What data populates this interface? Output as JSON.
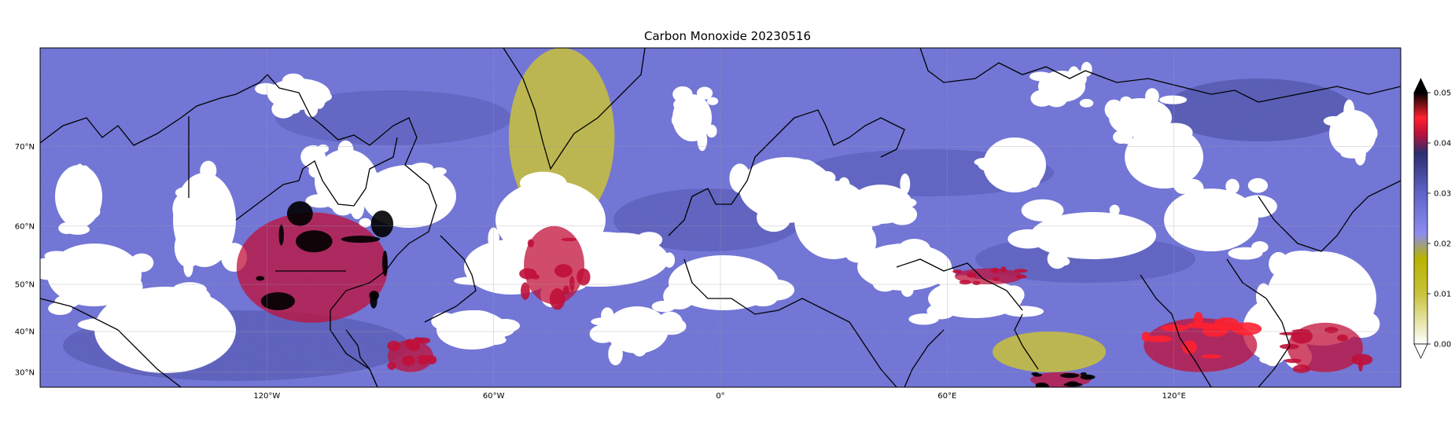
{
  "title": "Carbon Monoxide 20230516",
  "map": {
    "projection": "Mercator",
    "lon_range": [
      -180,
      180
    ],
    "lat_range": [
      26,
      78
    ],
    "background_color": "#7478dc",
    "cloud_mask_color": "#ffffff",
    "coastline_color": "#000000",
    "gridlines": true,
    "lat_ticks": [
      {
        "value": 70,
        "label": "70°N"
      },
      {
        "value": 60,
        "label": "60°N"
      },
      {
        "value": 50,
        "label": "50°N"
      },
      {
        "value": 40,
        "label": "40°N"
      },
      {
        "value": 30,
        "label": "30°N"
      }
    ],
    "lon_ticks": [
      {
        "value": -120,
        "label": "120°W"
      },
      {
        "value": -60,
        "label": "60°W"
      },
      {
        "value": 0,
        "label": "0°"
      },
      {
        "value": 60,
        "label": "60°E"
      },
      {
        "value": 120,
        "label": "120°E"
      }
    ]
  },
  "colorbar": {
    "min": 0,
    "max": 0.05,
    "extend": "both",
    "stops": [
      {
        "value": 0.0,
        "color": "#ffffff"
      },
      {
        "value": 0.01,
        "color": "#c8c23a"
      },
      {
        "value": 0.017,
        "color": "#b8b400"
      },
      {
        "value": 0.022,
        "color": "#8c8cf0"
      },
      {
        "value": 0.03,
        "color": "#6064c8"
      },
      {
        "value": 0.038,
        "color": "#2a2e6e"
      },
      {
        "value": 0.042,
        "color": "#c01038"
      },
      {
        "value": 0.045,
        "color": "#ff2030"
      },
      {
        "value": 0.05,
        "color": "#000000"
      }
    ],
    "ticks": [
      {
        "value": 0.05,
        "label": "0.05"
      },
      {
        "value": 0.04,
        "label": "0.04"
      },
      {
        "value": 0.03,
        "label": "0.03"
      },
      {
        "value": 0.02,
        "label": "0.02"
      },
      {
        "value": 0.01,
        "label": "0.01"
      },
      {
        "value": 0.0,
        "label": "0.00"
      }
    ]
  },
  "features": {
    "high_co_plumes": [
      {
        "name": "Western Canada wildfire plume",
        "lon": [
          -128,
          -88
        ],
        "lat": [
          42,
          62
        ],
        "value": 0.05
      },
      {
        "name": "Eastern China / Korea / Japan",
        "lon": [
          112,
          142
        ],
        "lat": [
          30,
          43
        ],
        "value": 0.045
      },
      {
        "name": "Northern India / Bangladesh",
        "lon": [
          82,
          98
        ],
        "lat": [
          26,
          30
        ],
        "value": 0.05
      },
      {
        "name": "Southeastern US",
        "lon": [
          -88,
          -76
        ],
        "lat": [
          30,
          38
        ],
        "value": 0.044
      },
      {
        "name": "North Atlantic filament",
        "lon": [
          -52,
          -36
        ],
        "lat": [
          46,
          60
        ],
        "value": 0.044
      },
      {
        "name": "Kazakhstan band",
        "lon": [
          62,
          80
        ],
        "lat": [
          50,
          53
        ],
        "value": 0.043
      },
      {
        "name": "Western Pacific",
        "lon": [
          150,
          170
        ],
        "lat": [
          30,
          42
        ],
        "value": 0.043
      }
    ],
    "low_co_regions": [
      {
        "name": "Greenland",
        "lon": [
          -56,
          -28
        ],
        "lat": [
          60,
          78
        ],
        "value": 0.015
      },
      {
        "name": "Tibetan Plateau",
        "lon": [
          72,
          102
        ],
        "lat": [
          30,
          40
        ],
        "value": 0.015
      }
    ]
  }
}
